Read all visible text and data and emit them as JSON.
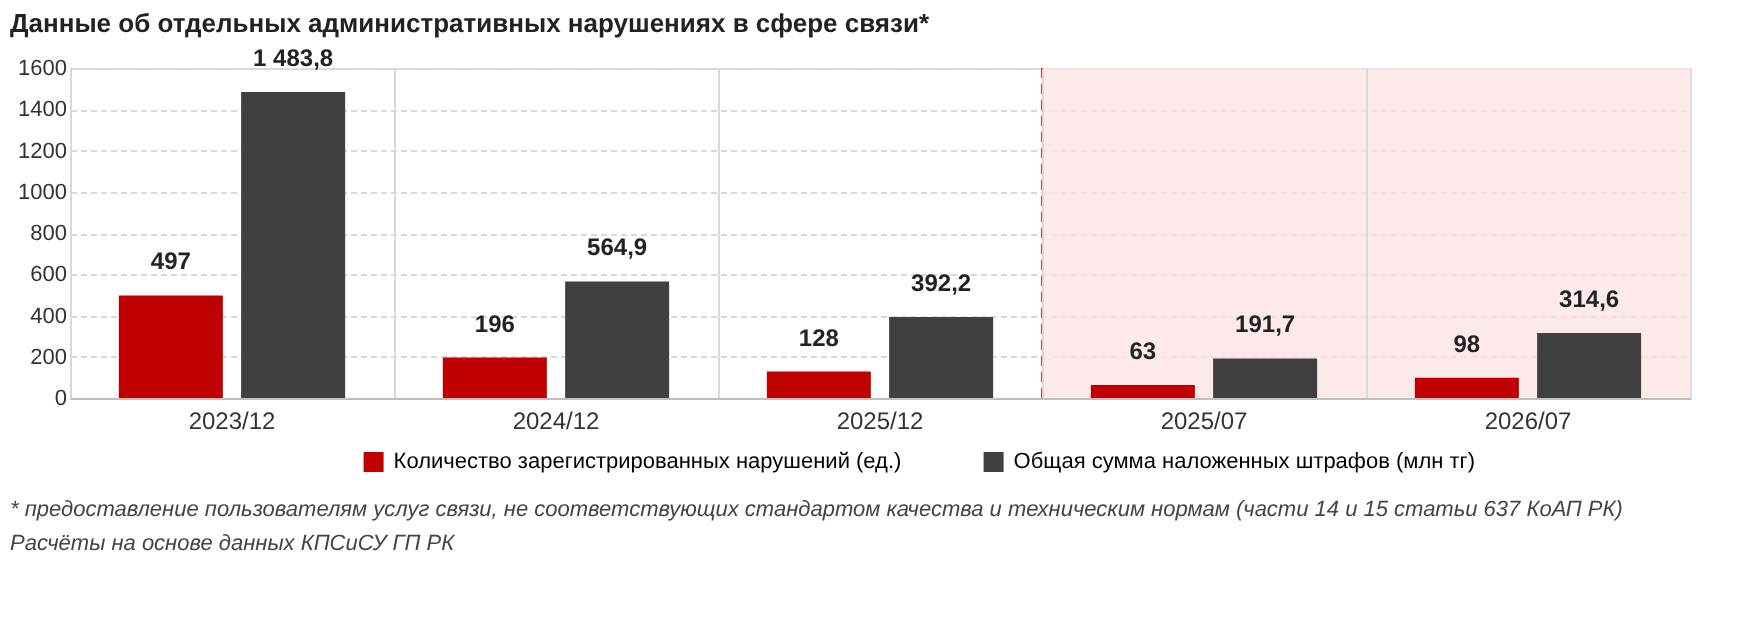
{
  "chart_data": {
    "type": "bar",
    "title": "Данные об отдельных административных нарушениях в сфере связи*",
    "categories": [
      "2023/12",
      "2024/12",
      "2025/12",
      "2025/07",
      "2026/07"
    ],
    "series": [
      {
        "name": "Количество зарегистрированных нарушений (ед.)",
        "color": "#c00000",
        "values": [
          497,
          196,
          128,
          63,
          98
        ],
        "value_labels": [
          "497",
          "196",
          "128",
          "63",
          "98"
        ]
      },
      {
        "name": "Общая сумма наложенных штрафов (млн тг)",
        "color": "#404040",
        "values": [
          1483.8,
          564.9,
          392.2,
          191.7,
          314.6
        ],
        "value_labels": [
          "1 483,8",
          "564,9",
          "392,2",
          "191,7",
          "314,6"
        ]
      }
    ],
    "ylim": [
      0,
      1600
    ],
    "yticks": [
      0,
      200,
      400,
      600,
      800,
      1000,
      1200,
      1400,
      1600
    ],
    "grid": true,
    "legend": "bottom",
    "bands": [
      {
        "axis": "x",
        "from": "2025/07",
        "to": "2026/07",
        "color": "#fbe5e5"
      }
    ],
    "ref_lines": [
      {
        "axis": "x",
        "value": "2025/07",
        "color": "#d9363e",
        "line_style": "dashed"
      }
    ],
    "annotations": [
      "* предоставление пользователям услуг связи, не соответствующих стандартом качества и техническим нормам (части 14 и 15 статьи 637 КоАП РК)",
      "Расчёты на основе данных КПСиСУ ГП РК"
    ]
  }
}
